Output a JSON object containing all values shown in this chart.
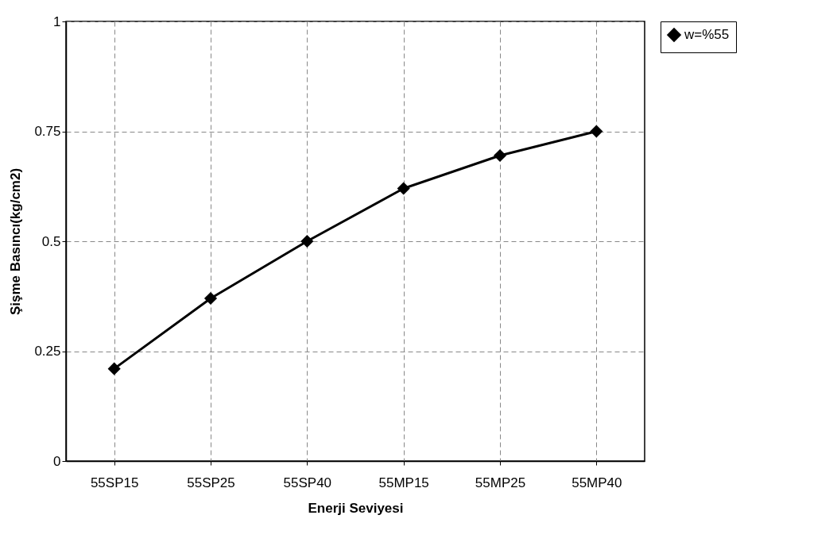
{
  "chart_data": {
    "type": "line",
    "xlabel": "Enerji Seviyesi",
    "ylabel": "Şişme Basıncı(kg/cm2)",
    "categories": [
      "55SP15",
      "55SP25",
      "55SP40",
      "55MP15",
      "55MP25",
      "55MP40"
    ],
    "series": [
      {
        "name": "w=%55",
        "color": "#000000",
        "values": [
          0.21,
          0.37,
          0.5,
          0.62,
          0.695,
          0.75
        ]
      }
    ],
    "ylim": [
      0,
      1
    ],
    "yticks": [
      0,
      0.25,
      0.5,
      0.75,
      1
    ],
    "grid": true,
    "legend": "right",
    "marker": "diamond",
    "line_style": "solid"
  }
}
